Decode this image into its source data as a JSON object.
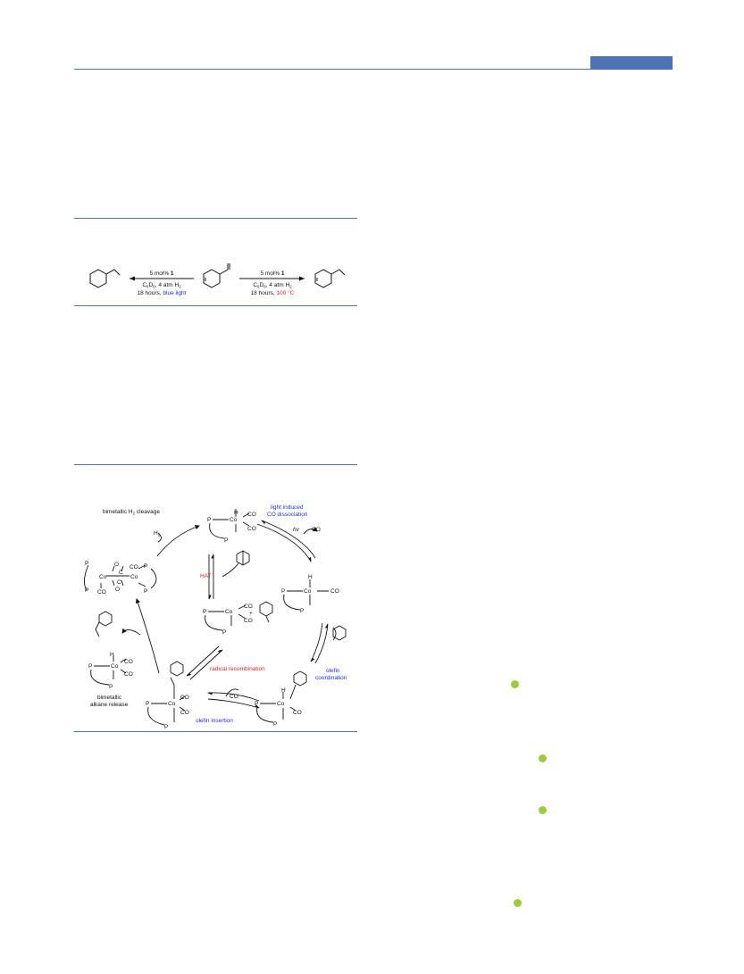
{
  "scheme_top": {
    "left_arrow": {
      "line1_prefix": "5 mol% ",
      "line1_bold": "1",
      "solvent": "C",
      "sub1": "6",
      "solvent2": "D",
      "sub2": "6",
      "pressure": ", 4 atm H",
      "sub3": "2",
      "time": "18 hours, ",
      "condition": "blue light"
    },
    "right_arrow": {
      "line1_prefix": "5 mol% ",
      "line1_bold": "1",
      "solvent": "C",
      "sub1": "6",
      "solvent2": "D",
      "sub2": "6",
      "pressure": ", 4 atm H",
      "sub3": "2",
      "time": "18 hours, ",
      "condition": "100 °C"
    }
  },
  "cycle": {
    "h2_cleavage": "bimetallic H",
    "h2_cleavage_sub": "2",
    "h2_cleavage_end": " cleavage",
    "h2": "H",
    "h2_sub": "2",
    "light_1": "light induced",
    "light_2": "CO dissociation",
    "hv": "hv",
    "co": "CO",
    "hat": "HAT",
    "plus": "+",
    "radical": "radical recombination",
    "olefin_coord_1": "olefin",
    "olefin_coord_2": "coordination",
    "olefin_insertion": "olefin insertion",
    "alkane_1": "bimetallic",
    "alkane_2": "alkane release",
    "P": "P",
    "Co": "Co",
    "H": "H",
    "O": "O",
    "C": "C"
  },
  "colors": {
    "accent": "#4a72b5",
    "blue_text": "#1f2fd6",
    "red_text": "#e0201c",
    "dot": "#9ccc3c"
  }
}
